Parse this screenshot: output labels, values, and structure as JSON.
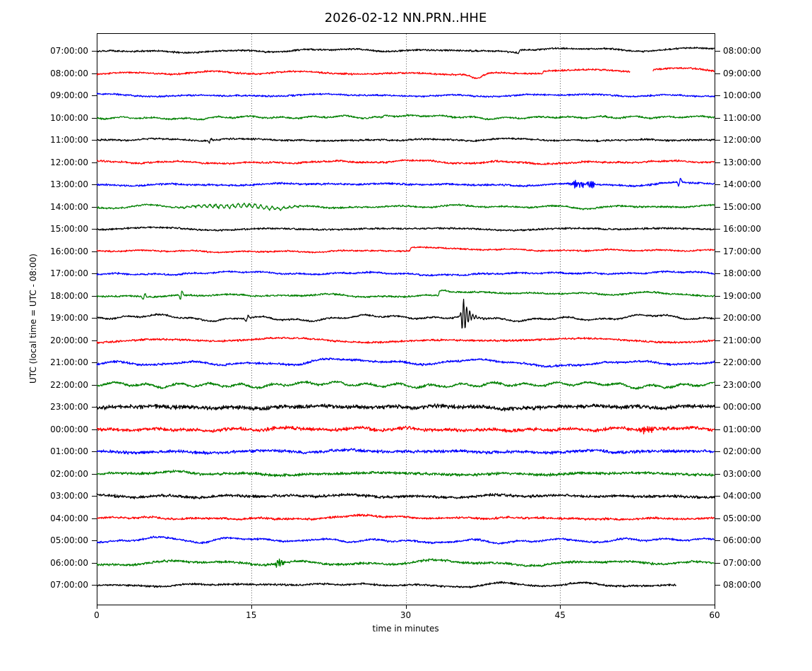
{
  "figure_title": "2026-02-12 NN.PRN..HHE",
  "chart_data": {
    "type": "line",
    "subtype": "seismogram-dayplot",
    "title": "2026-02-12 NN.PRN..HHE",
    "station_id": "NN.PRN..HHE",
    "date": "2026-02-12",
    "xlabel": "time in minutes",
    "ylabel": "UTC (local time = UTC - 08:00)",
    "xlim": [
      0,
      60
    ],
    "x_ticks": [
      "0",
      "15",
      "30",
      "45",
      "60"
    ],
    "x_tick_values": [
      0,
      15,
      30,
      45,
      60
    ],
    "grid": {
      "vertical_dotted_minutes": [
        15,
        30,
        45
      ]
    },
    "legend": "none",
    "color_cycle": [
      "#000000",
      "#ff0000",
      "#0000ff",
      "#008000"
    ],
    "interval_minutes": 60,
    "rows": [
      {
        "left_label": "07:00:00",
        "right_label": "08:00:00",
        "color": "#000000",
        "seed": 1001,
        "wave": 1.6,
        "noise": 0.9,
        "end": 60,
        "events": [
          {
            "kind": "step",
            "t": 41,
            "amp": 5,
            "tau": 12
          }
        ]
      },
      {
        "left_label": "08:00:00",
        "right_label": "09:00:00",
        "color": "#ff0000",
        "seed": 1078,
        "wave": 1.2,
        "noise": 0.9,
        "end": 60,
        "events": [
          {
            "kind": "gauss",
            "t": 36.9,
            "amp": -7,
            "w": 0.55
          },
          {
            "kind": "step",
            "t": 43.3,
            "amp": 3.5,
            "tau": 25
          },
          {
            "kind": "gap",
            "t": 51.8,
            "t2": 54.0
          },
          {
            "kind": "step",
            "t": 54.0,
            "amp": 3,
            "tau": 40
          }
        ]
      },
      {
        "left_label": "09:00:00",
        "right_label": "10:00:00",
        "color": "#0000ff",
        "seed": 1155,
        "wave": 1.0,
        "noise": 0.9,
        "end": 60,
        "events": []
      },
      {
        "left_label": "10:00:00",
        "right_label": "11:00:00",
        "color": "#008000",
        "seed": 1232,
        "wave": 1.1,
        "noise": 0.9,
        "end": 60,
        "events": [
          {
            "kind": "step",
            "t": 27.8,
            "amp": 4,
            "tau": 7
          }
        ]
      },
      {
        "left_label": "11:00:00",
        "right_label": "12:00:00",
        "color": "#000000",
        "seed": 1309,
        "wave": 0.8,
        "noise": 0.9,
        "end": 60,
        "events": [
          {
            "kind": "spike",
            "t": 11,
            "amp": 3,
            "w": 0.12
          }
        ]
      },
      {
        "left_label": "12:00:00",
        "right_label": "13:00:00",
        "color": "#ff0000",
        "seed": 1386,
        "wave": 1.3,
        "noise": 1.0,
        "end": 60,
        "events": []
      },
      {
        "left_label": "13:00:00",
        "right_label": "14:00:00",
        "color": "#0000ff",
        "seed": 1463,
        "wave": 1.0,
        "noise": 1.0,
        "end": 60,
        "events": [
          {
            "kind": "burst",
            "t": 46,
            "t2": 48.5,
            "amp": 2.5
          },
          {
            "kind": "spike",
            "t": 56.6,
            "amp": 5,
            "w": 0.14
          }
        ]
      },
      {
        "left_label": "14:00:00",
        "right_label": "15:00:00",
        "color": "#008000",
        "seed": 1540,
        "wave": 1.0,
        "noise": 0.9,
        "end": 60,
        "events": [
          {
            "kind": "tremor",
            "t": 7,
            "t2": 21,
            "amp": 2.6,
            "period": 0.55
          }
        ]
      },
      {
        "left_label": "15:00:00",
        "right_label": "16:00:00",
        "color": "#000000",
        "seed": 1617,
        "wave": 0.8,
        "noise": 0.9,
        "end": 60,
        "events": []
      },
      {
        "left_label": "16:00:00",
        "right_label": "17:00:00",
        "color": "#ff0000",
        "seed": 1694,
        "wave": 0.8,
        "noise": 0.8,
        "end": 60,
        "events": [
          {
            "kind": "step",
            "t": 30.4,
            "amp": 5,
            "tau": 14
          }
        ]
      },
      {
        "left_label": "17:00:00",
        "right_label": "18:00:00",
        "color": "#0000ff",
        "seed": 1771,
        "wave": 1.3,
        "noise": 0.9,
        "end": 60,
        "events": []
      },
      {
        "left_label": "18:00:00",
        "right_label": "19:00:00",
        "color": "#008000",
        "seed": 1848,
        "wave": 1.0,
        "noise": 0.9,
        "end": 60,
        "events": [
          {
            "kind": "spike",
            "t": 4.6,
            "amp": 4,
            "w": 0.12
          },
          {
            "kind": "spike",
            "t": 8.2,
            "amp": 6,
            "w": 0.12
          },
          {
            "kind": "step",
            "t": 33.2,
            "amp": 8,
            "tau": 11
          },
          {
            "kind": "gauss",
            "t": 54,
            "amp": 3.5,
            "w": 1.2
          }
        ]
      },
      {
        "left_label": "19:00:00",
        "right_label": "20:00:00",
        "color": "#000000",
        "seed": 1925,
        "wave": 2.4,
        "noise": 0.9,
        "end": 60,
        "events": [
          {
            "kind": "spike",
            "t": 14.6,
            "amp": 4,
            "w": 0.15
          },
          {
            "kind": "quake",
            "t": 35.6,
            "amp": 25
          }
        ]
      },
      {
        "left_label": "20:00:00",
        "right_label": "21:00:00",
        "color": "#ff0000",
        "seed": 2002,
        "wave": 2.0,
        "noise": 1.0,
        "end": 60,
        "events": []
      },
      {
        "left_label": "21:00:00",
        "right_label": "22:00:00",
        "color": "#0000ff",
        "seed": 2079,
        "wave": 2.4,
        "noise": 1.1,
        "end": 60,
        "events": []
      },
      {
        "left_label": "22:00:00",
        "right_label": "23:00:00",
        "color": "#008000",
        "seed": 2156,
        "wave": 1.8,
        "noise": 1.2,
        "end": 60,
        "events": []
      },
      {
        "left_label": "23:00:00",
        "right_label": "00:00:00",
        "color": "#000000",
        "seed": 2233,
        "wave": 1.0,
        "noise": 2.0,
        "end": 60,
        "events": []
      },
      {
        "left_label": "00:00:00",
        "right_label": "01:00:00",
        "color": "#ff0000",
        "seed": 2310,
        "wave": 1.0,
        "noise": 1.7,
        "end": 60,
        "events": [
          {
            "kind": "burst",
            "t": 52.5,
            "t2": 54.2,
            "amp": 2.5
          }
        ]
      },
      {
        "left_label": "01:00:00",
        "right_label": "02:00:00",
        "color": "#0000ff",
        "seed": 2387,
        "wave": 1.0,
        "noise": 1.5,
        "end": 60,
        "events": [
          {
            "kind": "gauss",
            "t": 48.5,
            "amp": 2.5,
            "w": 0.8
          }
        ]
      },
      {
        "left_label": "02:00:00",
        "right_label": "03:00:00",
        "color": "#008000",
        "seed": 2464,
        "wave": 1.2,
        "noise": 1.4,
        "end": 60,
        "events": [
          {
            "kind": "gauss",
            "t": 8,
            "amp": 3,
            "w": 1.0
          }
        ]
      },
      {
        "left_label": "03:00:00",
        "right_label": "04:00:00",
        "color": "#000000",
        "seed": 2541,
        "wave": 1.0,
        "noise": 1.4,
        "end": 60,
        "events": []
      },
      {
        "left_label": "04:00:00",
        "right_label": "05:00:00",
        "color": "#ff0000",
        "seed": 2618,
        "wave": 1.0,
        "noise": 1.1,
        "end": 60,
        "events": [
          {
            "kind": "gauss",
            "t": 25.5,
            "amp": 4.5,
            "w": 2.2
          }
        ]
      },
      {
        "left_label": "05:00:00",
        "right_label": "06:00:00",
        "color": "#0000ff",
        "seed": 2695,
        "wave": 1.5,
        "noise": 1.0,
        "end": 60,
        "events": [
          {
            "kind": "gauss",
            "t": 6,
            "amp": 4,
            "w": 1.3
          }
        ]
      },
      {
        "left_label": "06:00:00",
        "right_label": "07:00:00",
        "color": "#008000",
        "seed": 2772,
        "wave": 1.8,
        "noise": 1.2,
        "end": 60,
        "events": [
          {
            "kind": "burst",
            "t": 17.2,
            "t2": 18.4,
            "amp": 3
          }
        ]
      },
      {
        "left_label": "07:00:00",
        "right_label": "08:00:00",
        "color": "#000000",
        "seed": 2849,
        "wave": 1.5,
        "noise": 1.0,
        "end": 56.3,
        "events": [
          {
            "kind": "gauss",
            "t": 26,
            "amp": 3.5,
            "w": 1.6
          }
        ]
      }
    ]
  }
}
